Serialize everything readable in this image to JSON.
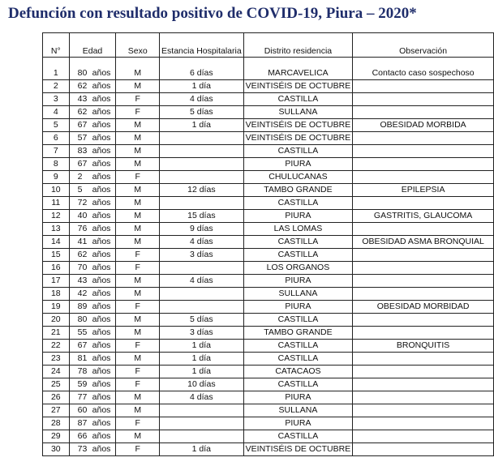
{
  "header": {
    "title": "Defunción con resultado positivo de COVID-19, Piura – 2020*"
  },
  "table": {
    "columns": [
      "N°",
      "Edad",
      "Sexo",
      "Estancia Hospitalaria",
      "Distrito residencia",
      "Observación"
    ],
    "rows": [
      [
        "1",
        "80",
        "años",
        "M",
        "6 días",
        "MARCAVELICA",
        "Contacto caso sospechoso"
      ],
      [
        "2",
        "62",
        "años",
        "M",
        "1 día",
        "VEINTISÉIS DE OCTUBRE",
        null
      ],
      [
        "3",
        "43",
        "años",
        "F",
        "4 días",
        "CASTILLA",
        null
      ],
      [
        "4",
        "62",
        "años",
        "F",
        "5 días",
        "SULLANA",
        null
      ],
      [
        "5",
        "67",
        "años",
        "M",
        "1 día",
        "VEINTISÉIS DE OCTUBRE",
        "OBESIDAD MORBIDA"
      ],
      [
        "6",
        "57",
        "años",
        "M",
        null,
        "VEINTISÉIS DE OCTUBRE",
        null
      ],
      [
        "7",
        "83",
        "años",
        "M",
        null,
        "CASTILLA",
        null
      ],
      [
        "8",
        "67",
        "años",
        "M",
        null,
        "PIURA",
        null
      ],
      [
        "9",
        "2",
        "años",
        "F",
        null,
        "CHULUCANAS",
        null
      ],
      [
        "10",
        "5",
        "años",
        "M",
        "12 días",
        "TAMBO GRANDE",
        "EPILEPSIA"
      ],
      [
        "11",
        "72",
        "años",
        "M",
        null,
        "CASTILLA",
        null
      ],
      [
        "12",
        "40",
        "años",
        "M",
        "15 días",
        "PIURA",
        "GASTRITIS, GLAUCOMA"
      ],
      [
        "13",
        "76",
        "años",
        "M",
        "9 días",
        "LAS LOMAS",
        null
      ],
      [
        "14",
        "41",
        "años",
        "M",
        "4 días",
        "CASTILLA",
        "OBESIDAD ASMA BRONQUIAL"
      ],
      [
        "15",
        "62",
        "años",
        "F",
        "3 días",
        "CASTILLA",
        null
      ],
      [
        "16",
        "70",
        "años",
        "F",
        null,
        "LOS ORGANOS",
        null
      ],
      [
        "17",
        "43",
        "años",
        "M",
        "4 días",
        "PIURA",
        null
      ],
      [
        "18",
        "42",
        "años",
        "M",
        null,
        "SULLANA",
        null
      ],
      [
        "19",
        "89",
        "años",
        "F",
        null,
        "PIURA",
        "OBESIDAD MORBIDAD"
      ],
      [
        "20",
        "80",
        "años",
        "M",
        "5 días",
        "CASTILLA",
        null
      ],
      [
        "21",
        "55",
        "años",
        "M",
        "3 días",
        "TAMBO GRANDE",
        null
      ],
      [
        "22",
        "67",
        "años",
        "F",
        "1 día",
        "CASTILLA",
        "BRONQUITIS"
      ],
      [
        "23",
        "81",
        "años",
        "M",
        "1 día",
        "CASTILLA",
        null
      ],
      [
        "24",
        "78",
        "años",
        "F",
        "1 día",
        "CATACAOS",
        null
      ],
      [
        "25",
        "59",
        "años",
        "F",
        "10 días",
        "CASTILLA",
        null
      ],
      [
        "26",
        "77",
        "años",
        "M",
        "4 días",
        "PIURA",
        null
      ],
      [
        "27",
        "60",
        "años",
        "M",
        null,
        "SULLANA",
        null
      ],
      [
        "28",
        "87",
        "años",
        "F",
        null,
        "PIURA",
        null
      ],
      [
        "29",
        "66",
        "años",
        "M",
        null,
        "CASTILLA",
        null
      ],
      [
        "30",
        "73",
        "años",
        "F",
        "1 día",
        "VEINTISÉIS DE OCTUBRE",
        null
      ]
    ]
  }
}
